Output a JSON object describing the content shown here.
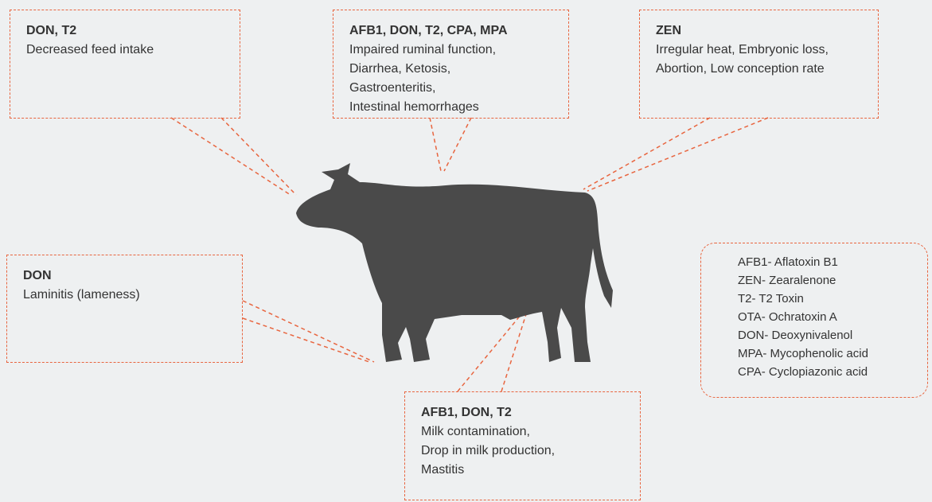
{
  "boxes": [
    {
      "title": "DON, T2",
      "lines": [
        "Decreased feed intake"
      ]
    },
    {
      "title": "AFB1, DON, T2, CPA, MPA",
      "lines": [
        "Impaired ruminal function,",
        "Diarrhea, Ketosis,",
        "Gastroenteritis,",
        "Intestinal hemorrhages"
      ]
    },
    {
      "title": "ZEN",
      "lines": [
        "Irregular heat, Embryonic loss,",
        "Abortion, Low conception rate"
      ]
    },
    {
      "title": "DON",
      "lines": [
        "Laminitis (lameness)"
      ]
    },
    {
      "title": "AFB1, DON, T2",
      "lines": [
        "Milk contamination,",
        "Drop in milk production,",
        "Mastitis"
      ]
    }
  ],
  "legend": {
    "items": [
      "AFB1- Aflatoxin B1",
      "ZEN- Zearalenone",
      "T2- T2 Toxin",
      "OTA- Ochratoxin A",
      "DON- Deoxynivalenol",
      "MPA- Mycophenolic acid",
      "CPA- Cyclopiazonic acid"
    ]
  }
}
